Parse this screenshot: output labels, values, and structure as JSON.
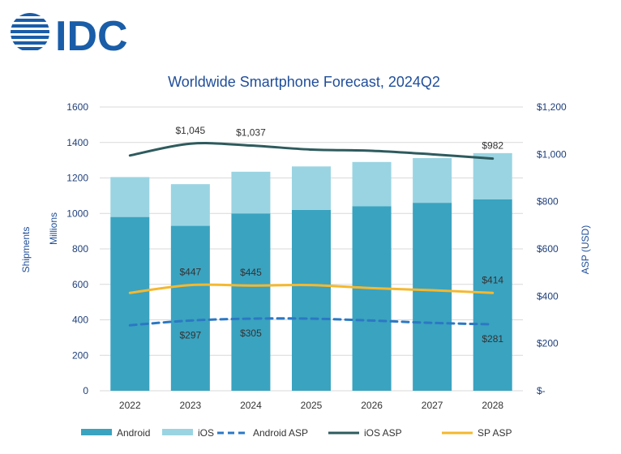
{
  "brand": {
    "logo_text": "IDC",
    "color": "#1a5da8"
  },
  "chart_data": {
    "type": "bar",
    "title": "Worldwide Smartphone Forecast, 2024Q2",
    "categories": [
      "2022",
      "2023",
      "2024",
      "2025",
      "2026",
      "2027",
      "2028"
    ],
    "ylabel": "Shipments",
    "ylabel_units": "Millions",
    "ylim": [
      0,
      1600
    ],
    "yticks": [
      "0",
      "200",
      "400",
      "600",
      "800",
      "1000",
      "1200",
      "1400",
      "1600"
    ],
    "y2label": "ASP (USD)",
    "y2lim": [
      0,
      1200
    ],
    "y2ticks": [
      "$-",
      "$200",
      "$400",
      "$600",
      "$800",
      "$1,000",
      "$1,200"
    ],
    "stacked": true,
    "grid": true,
    "legend_position": "bottom",
    "series": [
      {
        "name": "Android",
        "kind": "bar",
        "axis": "left",
        "color": "#3aa3c0",
        "values": [
          980,
          930,
          1000,
          1020,
          1040,
          1060,
          1080
        ]
      },
      {
        "name": "iOS",
        "kind": "bar",
        "axis": "left",
        "color": "#9ad4e2",
        "values": [
          225,
          235,
          235,
          245,
          250,
          252,
          260
        ]
      },
      {
        "name": "Android ASP",
        "kind": "line",
        "dash": true,
        "axis": "right",
        "color": "#2b78c4",
        "values": [
          277,
          297,
          305,
          305,
          297,
          287,
          281
        ]
      },
      {
        "name": "iOS ASP",
        "kind": "line",
        "axis": "right",
        "color": "#2e5b5e",
        "values": [
          995,
          1045,
          1037,
          1020,
          1015,
          1000,
          982
        ]
      },
      {
        "name": "SP ASP",
        "kind": "line",
        "axis": "right",
        "color": "#f5b82e",
        "values": [
          414,
          447,
          445,
          447,
          434,
          425,
          414
        ]
      }
    ],
    "data_labels": [
      {
        "series": "iOS ASP",
        "index": 1,
        "text": "$1,045"
      },
      {
        "series": "iOS ASP",
        "index": 2,
        "text": "$1,037"
      },
      {
        "series": "iOS ASP",
        "index": 6,
        "text": "$982"
      },
      {
        "series": "SP ASP",
        "index": 1,
        "text": "$447"
      },
      {
        "series": "SP ASP",
        "index": 2,
        "text": "$445"
      },
      {
        "series": "SP ASP",
        "index": 6,
        "text": "$414"
      },
      {
        "series": "Android ASP",
        "index": 1,
        "text": "$297"
      },
      {
        "series": "Android ASP",
        "index": 2,
        "text": "$305"
      },
      {
        "series": "Android ASP",
        "index": 6,
        "text": "$281"
      }
    ]
  }
}
